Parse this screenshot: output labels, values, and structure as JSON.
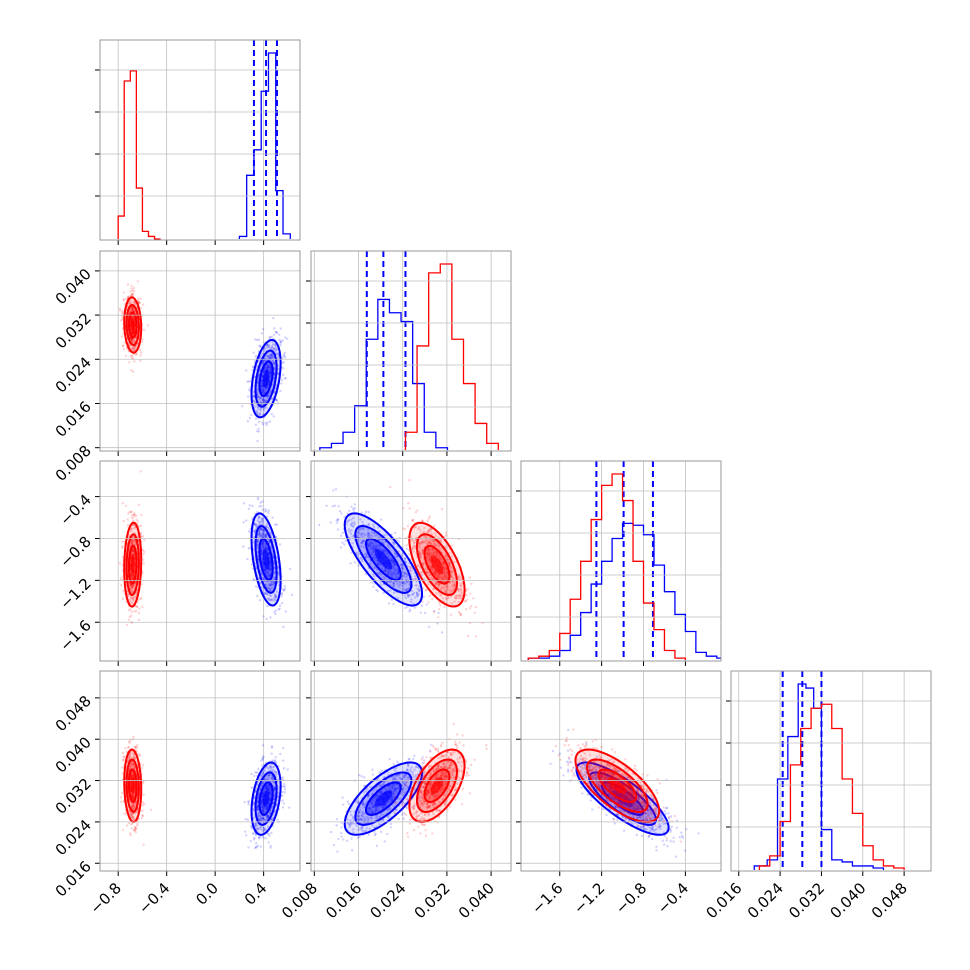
{
  "chart_data": {
    "type": "corner",
    "grid": true,
    "colors": {
      "blue": "#0000ff",
      "red": "#ff0000",
      "frame": "#9a9a9a",
      "grid": "#bfbfbf"
    },
    "series": [
      {
        "color": "blue",
        "means": [
          0.42,
          0.0205,
          -1.0,
          0.0285
        ],
        "sds": [
          0.06,
          0.0035,
          0.22,
          0.0035
        ],
        "correlations": {
          "1-0": 0.4,
          "2-0": -0.45,
          "2-1": -0.75,
          "3-0": 0.35,
          "3-1": 0.7,
          "3-2": -0.8
        },
        "quantiles": [
          [
            0.32,
            0.42,
            0.51
          ],
          [
            0.0175,
            0.0205,
            0.0245
          ],
          [
            -1.25,
            -0.99,
            -0.71
          ],
          [
            0.0245,
            0.0283,
            0.032
          ]
        ],
        "histograms": [
          {
            "edges": [
              0.2,
              0.26,
              0.32,
              0.38,
              0.44,
              0.5,
              0.56,
              0.62
            ],
            "counts": [
              0.01,
              0.25,
              0.35,
              0.58,
              0.73,
              0.19,
              0.02
            ]
          },
          {
            "edges": [
              0.009,
              0.0111,
              0.0132,
              0.0153,
              0.0174,
              0.0195,
              0.0216,
              0.0237,
              0.0258,
              0.0279,
              0.03,
              0.0321
            ],
            "counts": [
              0.01,
              0.03,
              0.08,
              0.2,
              0.5,
              0.68,
              0.62,
              0.58,
              0.3,
              0.08,
              0.01
            ]
          },
          {
            "edges": [
              -1.9,
              -1.8,
              -1.7,
              -1.6,
              -1.5,
              -1.4,
              -1.3,
              -1.2,
              -1.1,
              -1.0,
              -0.9,
              -0.8,
              -0.7,
              -0.6,
              -0.5,
              -0.4,
              -0.3,
              -0.2,
              -0.1,
              0.0
            ],
            "counts": [
              0.01,
              0.01,
              0.02,
              0.05,
              0.13,
              0.25,
              0.4,
              0.52,
              0.64,
              0.72,
              0.71,
              0.66,
              0.5,
              0.36,
              0.24,
              0.15,
              0.04,
              0.02,
              0.01
            ]
          },
          {
            "edges": [
              0.019,
              0.0215,
              0.0235,
              0.0255,
              0.0275,
              0.029,
              0.0305,
              0.032,
              0.034,
              0.036,
              0.038,
              0.04,
              0.042,
              0.044
            ],
            "counts": [
              0.02,
              0.05,
              0.45,
              0.66,
              0.92,
              0.9,
              0.8,
              0.2,
              0.05,
              0.04,
              0.02,
              0.02,
              0.01
            ]
          }
        ]
      },
      {
        "color": "red",
        "means": [
          -0.68,
          0.0302,
          -1.05,
          0.031
        ],
        "sds": [
          0.035,
          0.0025,
          0.2,
          0.0035
        ],
        "correlations": {
          "1-0": -0.1,
          "2-0": 0.1,
          "2-1": -0.6,
          "3-0": -0.1,
          "3-1": 0.55,
          "3-2": -0.7
        },
        "quantiles": [],
        "histograms": [
          {
            "edges": [
              -0.8,
              -0.75,
              -0.7,
              -0.65,
              -0.6,
              -0.55,
              -0.5,
              -0.45
            ],
            "counts": [
              0.09,
              0.62,
              0.66,
              0.2,
              0.03,
              0.01,
              0.0
            ]
          },
          {
            "edges": [
              0.0245,
              0.0266,
              0.0287,
              0.0308,
              0.0329,
              0.035,
              0.0371,
              0.0392,
              0.0413
            ],
            "counts": [
              0.08,
              0.47,
              0.8,
              0.84,
              0.5,
              0.3,
              0.12,
              0.03
            ]
          },
          {
            "edges": [
              -1.9,
              -1.8,
              -1.7,
              -1.6,
              -1.5,
              -1.4,
              -1.3,
              -1.2,
              -1.1,
              -1.0,
              -0.9,
              -0.8,
              -0.7,
              -0.6,
              -0.5,
              -0.4
            ],
            "counts": [
              0.01,
              0.02,
              0.05,
              0.14,
              0.32,
              0.52,
              0.74,
              0.92,
              0.98,
              0.84,
              0.52,
              0.3,
              0.16,
              0.05,
              0.01
            ]
          },
          {
            "edges": [
              0.02,
              0.022,
              0.024,
              0.026,
              0.028,
              0.03,
              0.032,
              0.034,
              0.036,
              0.038,
              0.04,
              0.042,
              0.044,
              0.046,
              0.048
            ],
            "counts": [
              0.02,
              0.07,
              0.24,
              0.52,
              0.7,
              0.8,
              0.82,
              0.7,
              0.45,
              0.28,
              0.12,
              0.05,
              0.02,
              0.01
            ]
          }
        ]
      }
    ],
    "axes": [
      {
        "range": [
          -0.95,
          0.7
        ],
        "ticks": [
          -0.8,
          -0.4,
          0.0,
          0.4
        ],
        "tick_labels": [
          "−0.8",
          "−0.4",
          "0.0",
          "0.4"
        ]
      },
      {
        "range": [
          0.0074,
          0.0436
        ],
        "ticks": [
          0.008,
          0.016,
          0.024,
          0.032,
          0.04
        ],
        "tick_labels": [
          "0.008",
          "0.016",
          "0.024",
          "0.032",
          "0.040"
        ]
      },
      {
        "range": [
          -1.97,
          -0.06
        ],
        "ticks": [
          -1.6,
          -1.2,
          -0.8,
          -0.4
        ],
        "tick_labels": [
          "−1.6",
          "−1.2",
          "−0.8",
          "−0.4"
        ]
      },
      {
        "range": [
          0.0145,
          0.0532
        ],
        "ticks": [
          0.016,
          0.024,
          0.032,
          0.04,
          0.048
        ],
        "tick_labels": [
          "0.016",
          "0.024",
          "0.032",
          "0.040",
          "0.048"
        ]
      }
    ]
  }
}
